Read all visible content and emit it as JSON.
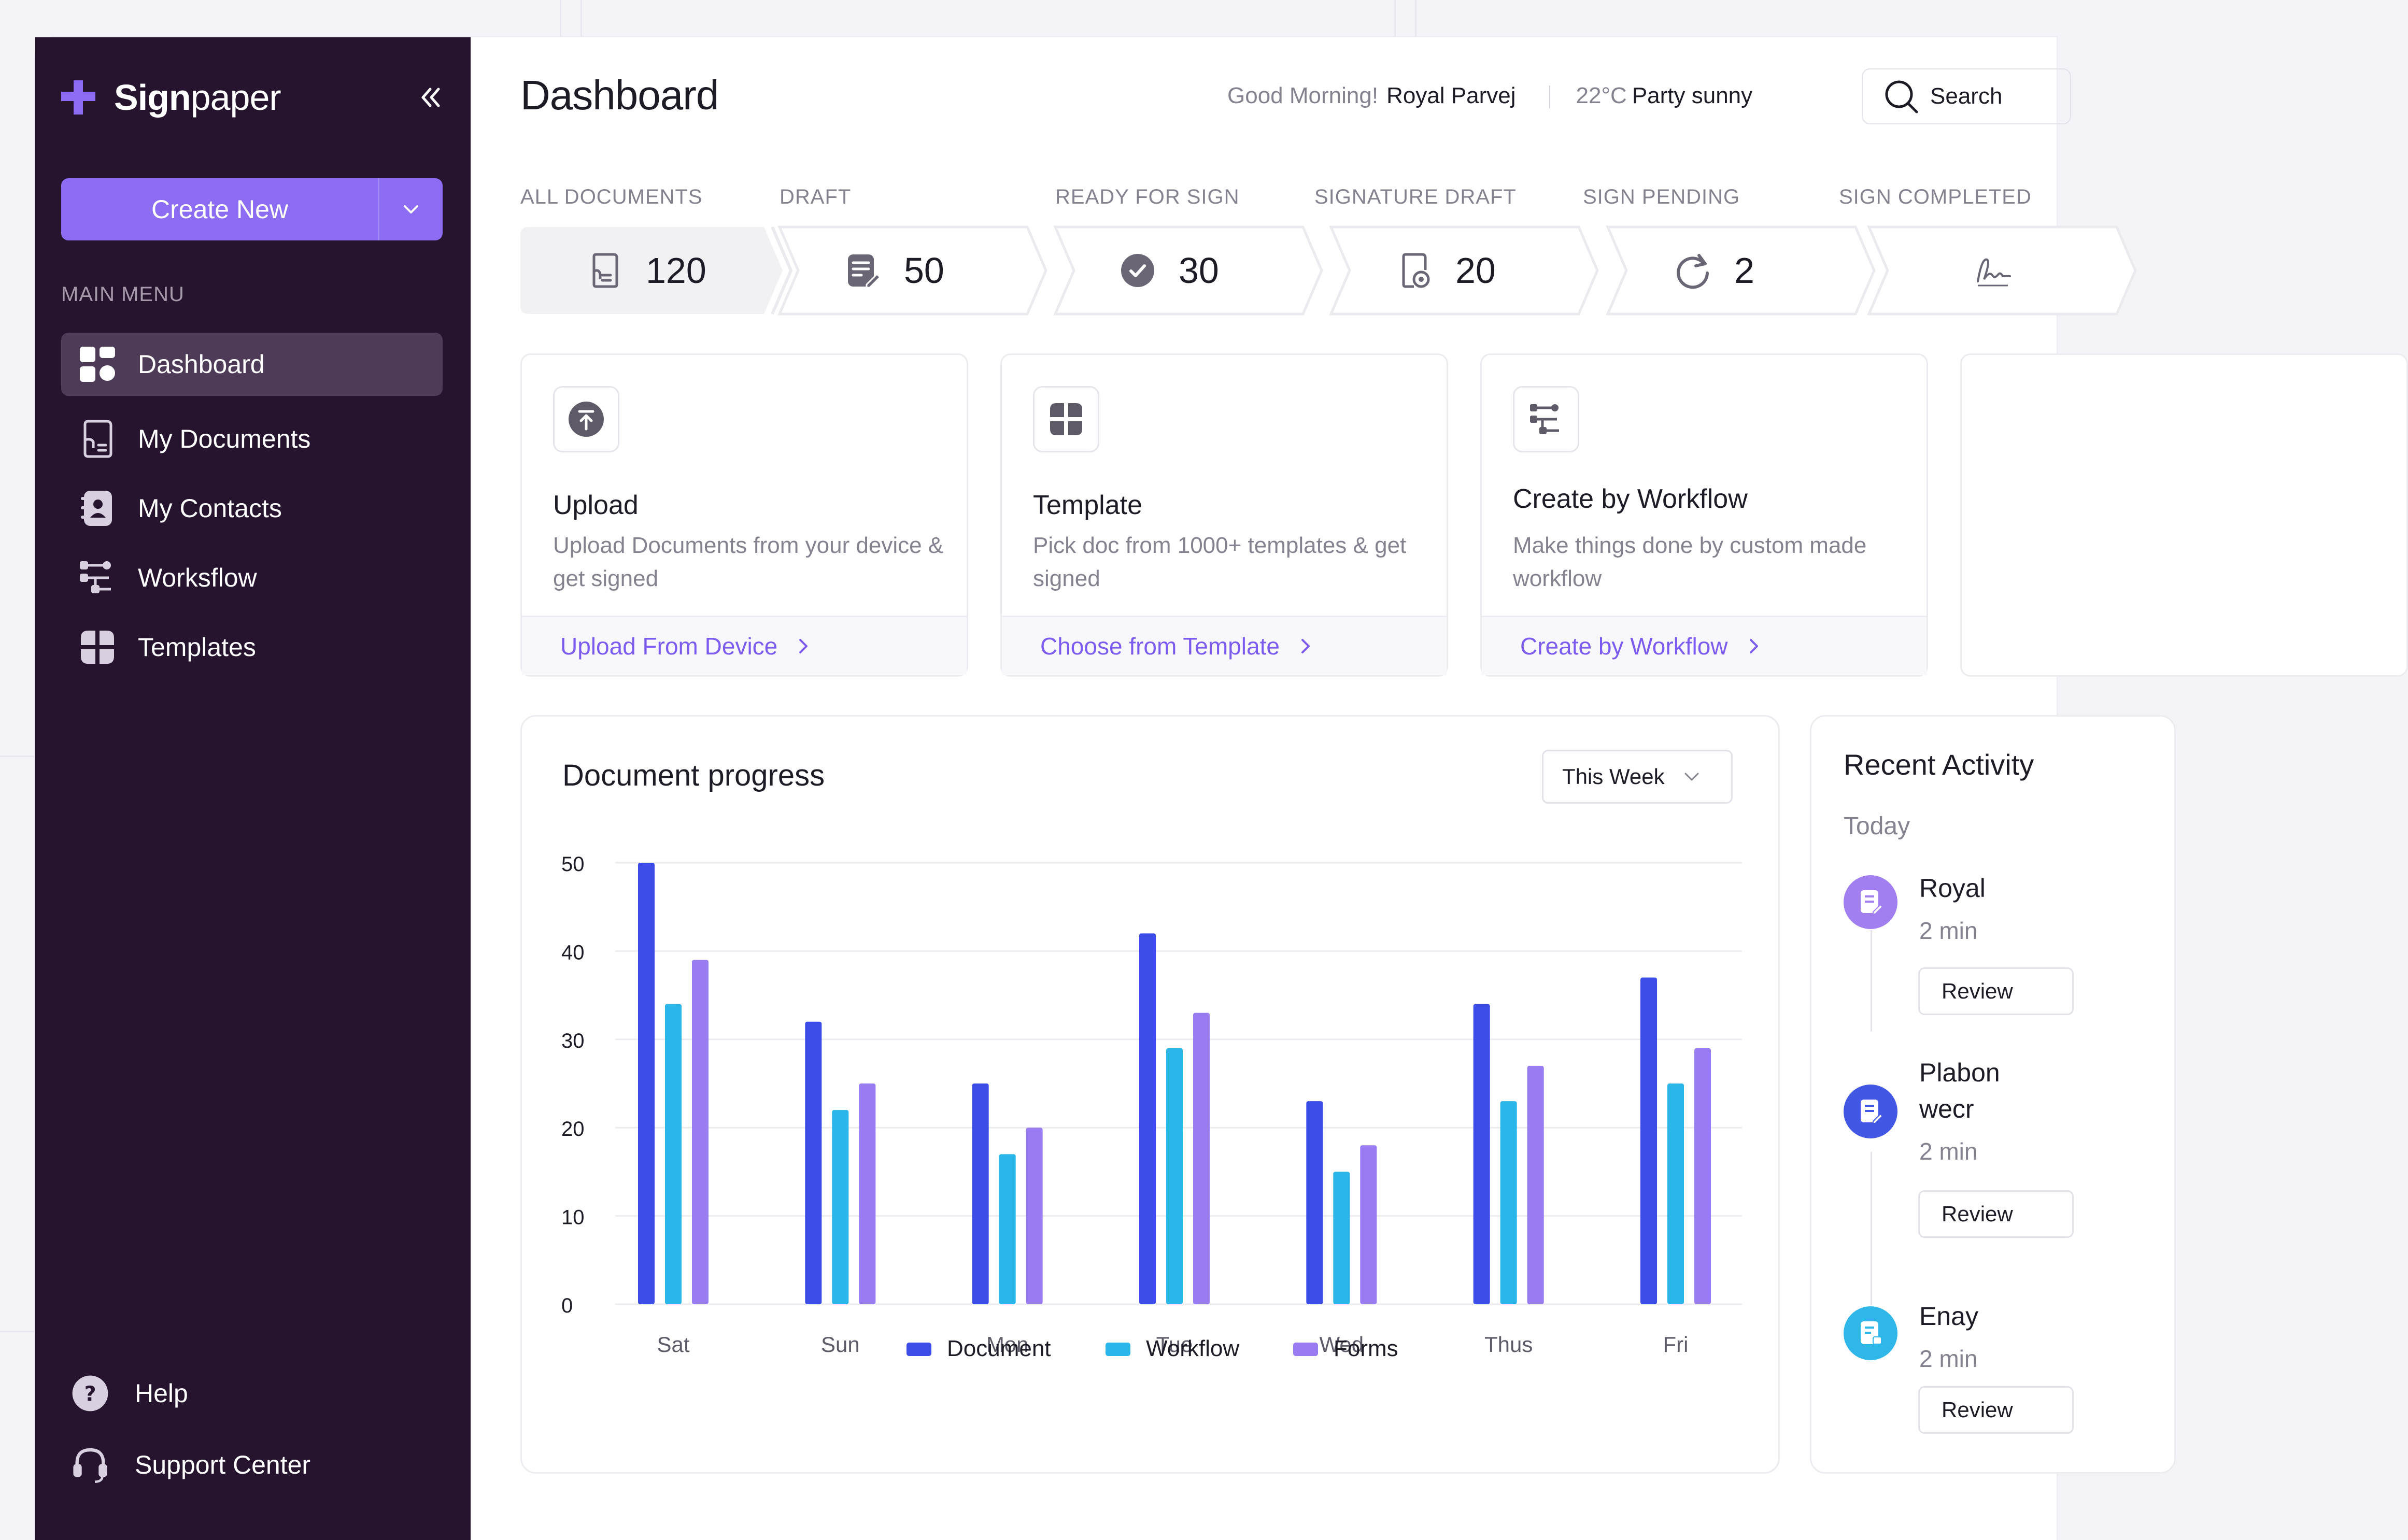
{
  "brand": {
    "name_bold": "Sign",
    "name_light": "paper"
  },
  "sidebar": {
    "create_label": "Create New",
    "menu_title": "MAIN MENU",
    "items": [
      {
        "label": "Dashboard",
        "icon": "dashboard-icon",
        "active": true
      },
      {
        "label": "My Documents",
        "icon": "document-icon"
      },
      {
        "label": "My Contacts",
        "icon": "contacts-icon"
      },
      {
        "label": "Worksflow",
        "icon": "workflow-icon"
      },
      {
        "label": "Templates",
        "icon": "templates-icon"
      }
    ],
    "help_label": "Help",
    "support_label": "Support Center"
  },
  "header": {
    "title": "Dashboard",
    "greeting": "Good Morning!",
    "user": "Royal Parvej",
    "temperature": "22°C",
    "condition": "Party sunny",
    "search_placeholder": "Search"
  },
  "status_steps": [
    {
      "label": "ALL DOCUMENTS",
      "count": "120",
      "icon": "all-documents-icon"
    },
    {
      "label": "DRAFT",
      "count": "50",
      "icon": "draft-icon"
    },
    {
      "label": "READY FOR SIGN",
      "count": "30",
      "icon": "check-circle-icon"
    },
    {
      "label": "SIGNATURE DRAFT",
      "count": "20",
      "icon": "signature-draft-icon"
    },
    {
      "label": "SIGN PENDING",
      "count": "2",
      "icon": "refresh-icon"
    },
    {
      "label": "SIGN COMPLETED",
      "count": "",
      "icon": "signature-icon"
    }
  ],
  "cards": [
    {
      "title": "Upload",
      "desc": "Upload Documents from your device & get signed",
      "link": "Upload From Device",
      "icon": "upload-icon"
    },
    {
      "title": "Template",
      "desc": "Pick doc from 1000+ templates & get signed",
      "link": "Choose from Template",
      "icon": "template-icon"
    },
    {
      "title": "Create by Workflow",
      "desc": "Make things done by custom made workflow",
      "link": "Create by Workflow",
      "icon": "workflow-icon"
    }
  ],
  "progress": {
    "title": "Document progress",
    "period": "This Week"
  },
  "chart_data": {
    "type": "bar",
    "categories": [
      "Sat",
      "Sun",
      "Mon",
      "Tue",
      "Wed",
      "Thus",
      "Fri"
    ],
    "series": [
      {
        "name": "Document",
        "color": "#3b4de6",
        "values": [
          50,
          32,
          25,
          42,
          23,
          34,
          37
        ]
      },
      {
        "name": "Workflow",
        "color": "#2bb6ea",
        "values": [
          34,
          22,
          17,
          29,
          15,
          23,
          25
        ]
      },
      {
        "name": "Forms",
        "color": "#9a7cf2",
        "values": [
          39,
          25,
          20,
          33,
          18,
          27,
          29
        ]
      }
    ],
    "yticks": [
      0,
      10,
      20,
      30,
      40,
      50
    ],
    "ylim": [
      0,
      50
    ],
    "grid": true,
    "legend": "bottom"
  },
  "recent": {
    "title": "Recent Activity",
    "day": "Today",
    "items": [
      {
        "name": "Royal",
        "time": "2 min",
        "button": "Review",
        "color": "#a27ff0"
      },
      {
        "name": "Plabon",
        "extra": "wecr",
        "time": "2 min",
        "button": "Review",
        "color": "#4257e4"
      },
      {
        "name": "Enay",
        "time": "2 min",
        "button": "Review",
        "color": "#2fb7ea"
      }
    ]
  },
  "colors": {
    "sidebar": "#26142f",
    "accent": "#8c6cf2",
    "link": "#7c5cf0"
  }
}
